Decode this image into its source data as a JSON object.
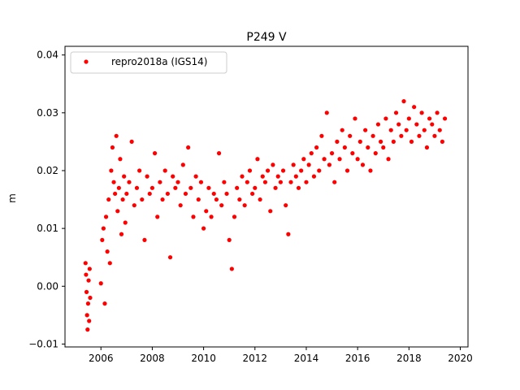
{
  "chart_data": {
    "type": "scatter",
    "title": "P249 V",
    "xlabel": "",
    "ylabel": "m",
    "xlim": [
      2004.6,
      2020.3
    ],
    "ylim": [
      -0.0105,
      0.0415
    ],
    "xticks": [
      2006,
      2008,
      2010,
      2012,
      2014,
      2016,
      2018,
      2020
    ],
    "xtick_labels": [
      "2006",
      "2008",
      "2010",
      "2012",
      "2014",
      "2016",
      "2018",
      "2020"
    ],
    "yticks": [
      -0.01,
      0.0,
      0.01,
      0.02,
      0.03,
      0.04
    ],
    "ytick_labels": [
      "−0.01",
      "0.00",
      "0.01",
      "0.02",
      "0.03",
      "0.04"
    ],
    "grid": false,
    "legend_position": "top-left",
    "series": [
      {
        "name": "repro2018a (IGS14)",
        "color": "#ff0000",
        "marker": "circle",
        "x": [
          2005.4,
          2005.42,
          2005.44,
          2005.46,
          2005.48,
          2005.5,
          2005.52,
          2005.54,
          2005.56,
          2005.58,
          2006.0,
          2006.05,
          2006.1,
          2006.15,
          2006.2,
          2006.25,
          2006.3,
          2006.35,
          2006.4,
          2006.45,
          2006.5,
          2006.55,
          2006.6,
          2006.65,
          2006.7,
          2006.75,
          2006.8,
          2006.85,
          2006.9,
          2006.95,
          2007.0,
          2007.1,
          2007.2,
          2007.3,
          2007.4,
          2007.5,
          2007.6,
          2007.7,
          2007.8,
          2007.9,
          2008.0,
          2008.1,
          2008.2,
          2008.3,
          2008.4,
          2008.5,
          2008.6,
          2008.7,
          2008.8,
          2008.9,
          2009.0,
          2009.1,
          2009.2,
          2009.3,
          2009.4,
          2009.5,
          2009.6,
          2009.7,
          2009.8,
          2009.9,
          2010.0,
          2010.1,
          2010.2,
          2010.3,
          2010.4,
          2010.5,
          2010.6,
          2010.7,
          2010.8,
          2010.9,
          2011.0,
          2011.1,
          2011.2,
          2011.3,
          2011.4,
          2011.5,
          2011.6,
          2011.7,
          2011.8,
          2011.9,
          2012.0,
          2012.1,
          2012.2,
          2012.3,
          2012.4,
          2012.5,
          2012.6,
          2012.7,
          2012.8,
          2012.9,
          2013.0,
          2013.1,
          2013.2,
          2013.3,
          2013.4,
          2013.5,
          2013.6,
          2013.7,
          2013.8,
          2013.9,
          2014.0,
          2014.1,
          2014.2,
          2014.3,
          2014.4,
          2014.5,
          2014.6,
          2014.7,
          2014.8,
          2014.9,
          2015.0,
          2015.1,
          2015.2,
          2015.3,
          2015.4,
          2015.5,
          2015.6,
          2015.7,
          2015.8,
          2015.9,
          2016.0,
          2016.1,
          2016.2,
          2016.3,
          2016.4,
          2016.5,
          2016.6,
          2016.7,
          2016.8,
          2016.9,
          2017.0,
          2017.1,
          2017.2,
          2017.3,
          2017.4,
          2017.5,
          2017.6,
          2017.7,
          2017.8,
          2017.9,
          2018.0,
          2018.1,
          2018.2,
          2018.3,
          2018.4,
          2018.5,
          2018.6,
          2018.7,
          2018.8,
          2018.9,
          2019.0,
          2019.1,
          2019.2,
          2019.3,
          2019.4
        ],
        "y": [
          0.004,
          0.002,
          -0.001,
          -0.005,
          -0.0075,
          -0.003,
          0.001,
          -0.006,
          0.003,
          -0.002,
          0.0005,
          0.008,
          0.01,
          -0.003,
          0.012,
          0.006,
          0.015,
          0.004,
          0.02,
          0.024,
          0.018,
          0.016,
          0.026,
          0.013,
          0.017,
          0.022,
          0.009,
          0.015,
          0.019,
          0.011,
          0.016,
          0.018,
          0.025,
          0.014,
          0.017,
          0.02,
          0.015,
          0.008,
          0.019,
          0.016,
          0.017,
          0.023,
          0.012,
          0.018,
          0.015,
          0.02,
          0.016,
          0.005,
          0.019,
          0.017,
          0.018,
          0.014,
          0.021,
          0.016,
          0.024,
          0.017,
          0.012,
          0.019,
          0.015,
          0.018,
          0.01,
          0.013,
          0.017,
          0.012,
          0.016,
          0.015,
          0.023,
          0.014,
          0.018,
          0.016,
          0.008,
          0.003,
          0.012,
          0.017,
          0.015,
          0.019,
          0.014,
          0.018,
          0.02,
          0.016,
          0.017,
          0.022,
          0.015,
          0.019,
          0.018,
          0.02,
          0.013,
          0.021,
          0.017,
          0.019,
          0.018,
          0.02,
          0.014,
          0.009,
          0.018,
          0.021,
          0.019,
          0.017,
          0.02,
          0.022,
          0.018,
          0.021,
          0.023,
          0.019,
          0.024,
          0.02,
          0.026,
          0.022,
          0.03,
          0.021,
          0.023,
          0.018,
          0.025,
          0.022,
          0.027,
          0.024,
          0.02,
          0.026,
          0.023,
          0.029,
          0.022,
          0.025,
          0.021,
          0.027,
          0.024,
          0.02,
          0.026,
          0.023,
          0.028,
          0.025,
          0.024,
          0.029,
          0.022,
          0.027,
          0.025,
          0.03,
          0.028,
          0.026,
          0.032,
          0.027,
          0.029,
          0.025,
          0.031,
          0.028,
          0.026,
          0.03,
          0.027,
          0.024,
          0.029,
          0.028,
          0.026,
          0.03,
          0.027,
          0.025,
          0.029
        ]
      }
    ]
  }
}
